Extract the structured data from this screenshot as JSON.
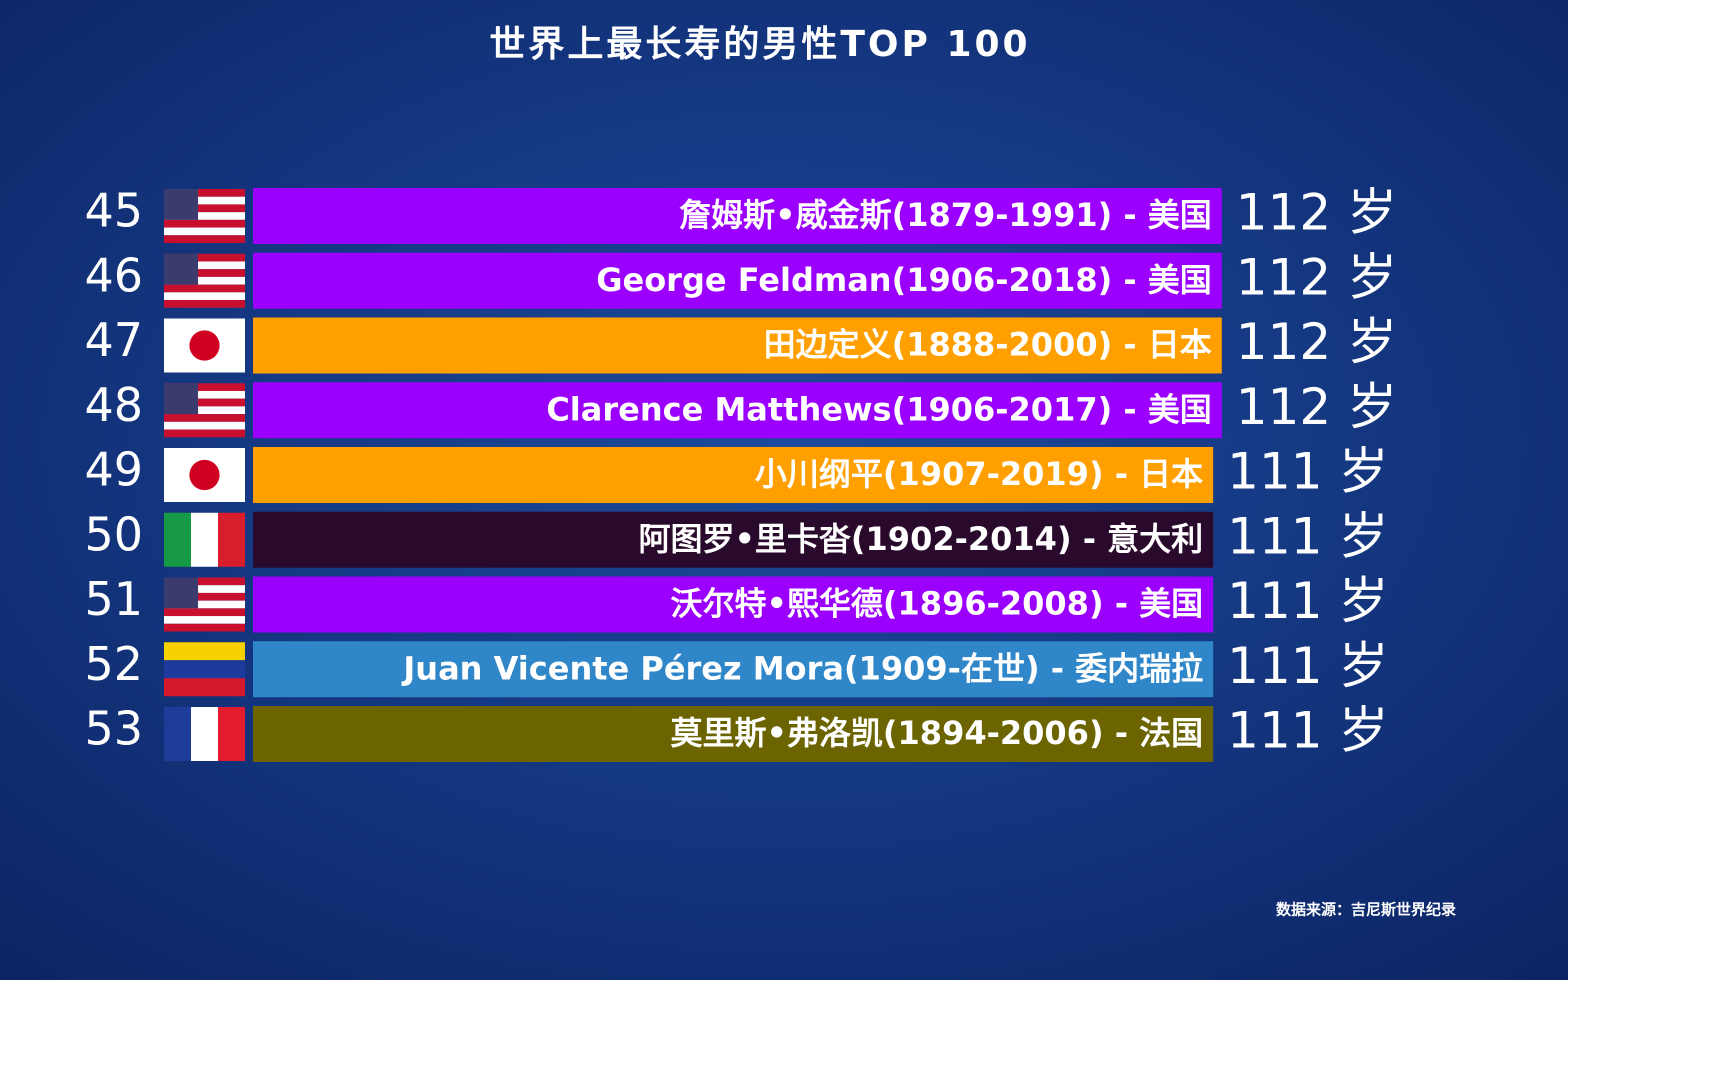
{
  "chart_data": {
    "type": "bar",
    "orientation": "horizontal",
    "title": "世界上最长寿的男性TOP 100",
    "ranks": [
      "45",
      "46",
      "47",
      "48",
      "49",
      "50",
      "51",
      "52",
      "53"
    ],
    "categories": [
      "詹姆斯•威金斯(1879-1991) - 美国",
      "George Feldman(1906-2018) - 美国",
      "田边定义(1888-2000) - 日本",
      "Clarence Matthews(1906-2017) - 美国",
      "小川纲平(1907-2019) - 日本",
      "阿图罗•里卡沓(1902-2014) - 意大利",
      "沃尔特•熙华德(1896-2008) - 美国",
      "Juan Vicente Pérez Mora(1909-在世) - 委内瑞拉",
      "莫里斯•弗洛凯(1894-2006) - 法国"
    ],
    "values": [
      112,
      112,
      112,
      112,
      111,
      111,
      111,
      111,
      111
    ],
    "value_labels": [
      "112 岁",
      "112 岁",
      "112 岁",
      "112 岁",
      "111 岁",
      "111 岁",
      "111 岁",
      "111 岁",
      "111 岁"
    ],
    "colors": [
      "#9b00ff",
      "#9b00ff",
      "#ff9f00",
      "#9b00ff",
      "#ff9f00",
      "#2a0a2c",
      "#9b00ff",
      "#2f86c8",
      "#6b6400"
    ],
    "source": "数据来源：吉尼斯世界纪录"
  }
}
